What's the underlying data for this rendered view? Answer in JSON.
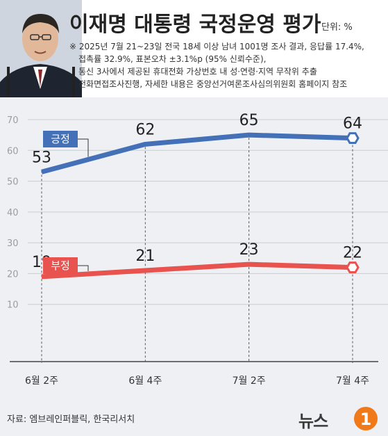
{
  "header": {
    "title": "이재명 대통령 국정운영 평가",
    "unit": "단위: %",
    "notes": [
      "※ 2025년 7월 21~23일 전국 18세 이상 남녀 1001명 조사 결과, 응답률 17.4%,",
      "접촉률 32.9%, 표본오차 ±3.1%p (95% 신뢰수준),",
      "통신 3사에서 제공된 휴대전화 가상번호 내 성·연령·지역 무작위 추출",
      "전화면접조사진행, 자세한 내용은 중앙선거여론조사심의위원회 홈페이지 참조"
    ]
  },
  "chart_data": {
    "type": "line",
    "categories": [
      "6월 2주",
      "6월 4주",
      "7월 2주",
      "7월 4주"
    ],
    "series": [
      {
        "name": "긍정",
        "values": [
          53,
          62,
          65,
          64
        ],
        "color": "#4470b8"
      },
      {
        "name": "부정",
        "values": [
          19,
          21,
          23,
          22
        ],
        "color": "#e8524f"
      }
    ],
    "ylim": [
      0,
      70
    ],
    "yticks": [
      "10",
      "20",
      "30",
      "40",
      "50",
      "60",
      "70"
    ],
    "grid": true,
    "value_labels": [
      "53",
      "62",
      "65",
      "64",
      "19",
      "21",
      "23",
      "22"
    ]
  },
  "footer": {
    "source": "자료: 엠브레인퍼블릭, 한국리서치",
    "logo": "뉴스1"
  }
}
